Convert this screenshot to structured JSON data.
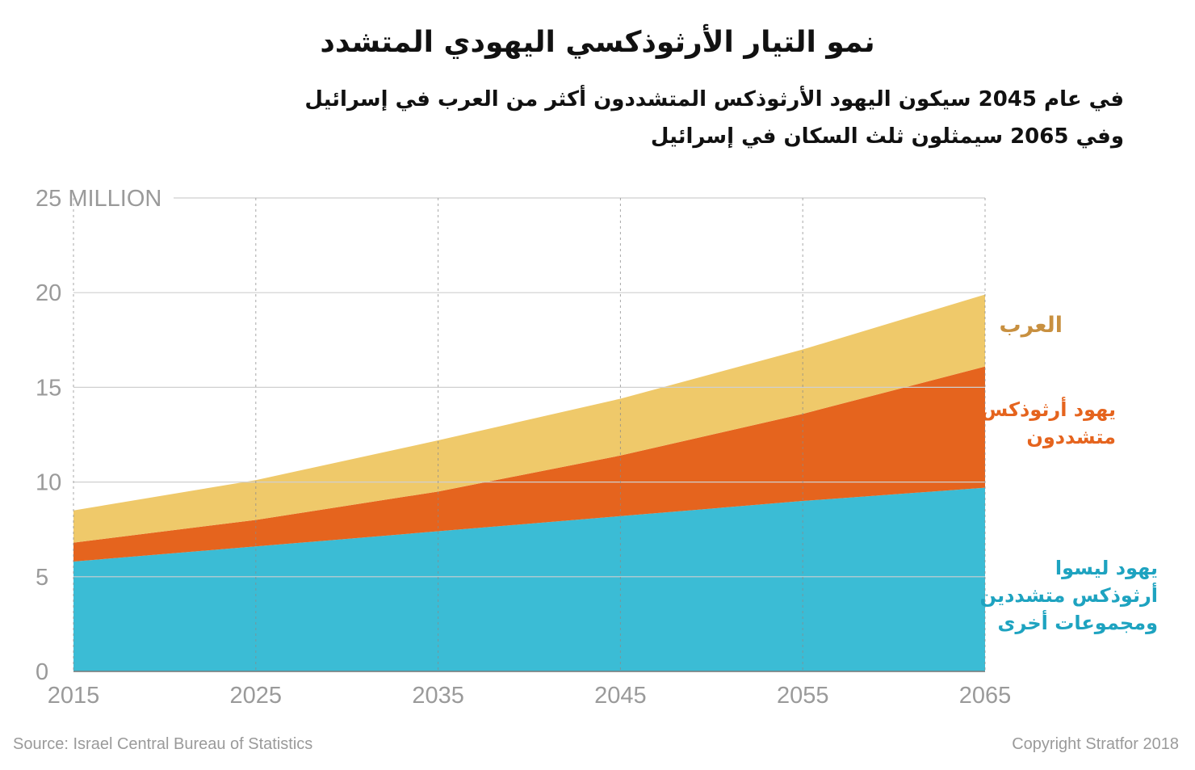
{
  "header": {
    "title": "نمو التيار الأرثوذكسي اليهودي المتشدد",
    "subtitle_line1": "في عام 2045 سيكون اليهود الأرثوذكس المتشددون أكثر من العرب في إسرائيل",
    "subtitle_line2": "وفي 2065 سيمثلون ثلث السكان في إسرائيل"
  },
  "chart_data": {
    "type": "area",
    "stacked": true,
    "x": [
      2015,
      2025,
      2035,
      2045,
      2055,
      2065
    ],
    "x_tick_labels": [
      "2015",
      "2025",
      "2035",
      "2045",
      "2055",
      "2065"
    ],
    "y_tick_labels": [
      "0",
      "5",
      "10",
      "15",
      "20",
      "25 MILLION"
    ],
    "ylim": [
      0,
      25
    ],
    "grid": "horizontal solid, vertical dotted",
    "legend": "direct labels on right",
    "series": [
      {
        "name": "يهود ليسوا أرثوذكس متشددين ومجموعات أخرى",
        "color": "#3bbcd5",
        "values": [
          5.8,
          6.6,
          7.4,
          8.2,
          9.0,
          9.7
        ]
      },
      {
        "name": "يهود أرثوذكس متشددون",
        "color": "#e5641e",
        "values": [
          1.0,
          1.4,
          2.1,
          3.2,
          4.6,
          6.4
        ]
      },
      {
        "name": "العرب",
        "color": "#efc96a",
        "values": [
          1.7,
          2.1,
          2.7,
          3.0,
          3.4,
          3.8
        ]
      }
    ]
  },
  "labels": {
    "arabs": "العرب",
    "haredi": "يهود أرثوذكس\nمتشددون",
    "others": "يهود ليسوا\nأرثوذكس متشددين\nومجموعات أخرى"
  },
  "colors": {
    "arabs_label": "#c89040",
    "haredi_label": "#e5641e",
    "others_label": "#1ea3c0"
  },
  "footer": {
    "source": "Source: Israel Central Bureau of Statistics",
    "copyright": "Copyright Stratfor 2018"
  }
}
